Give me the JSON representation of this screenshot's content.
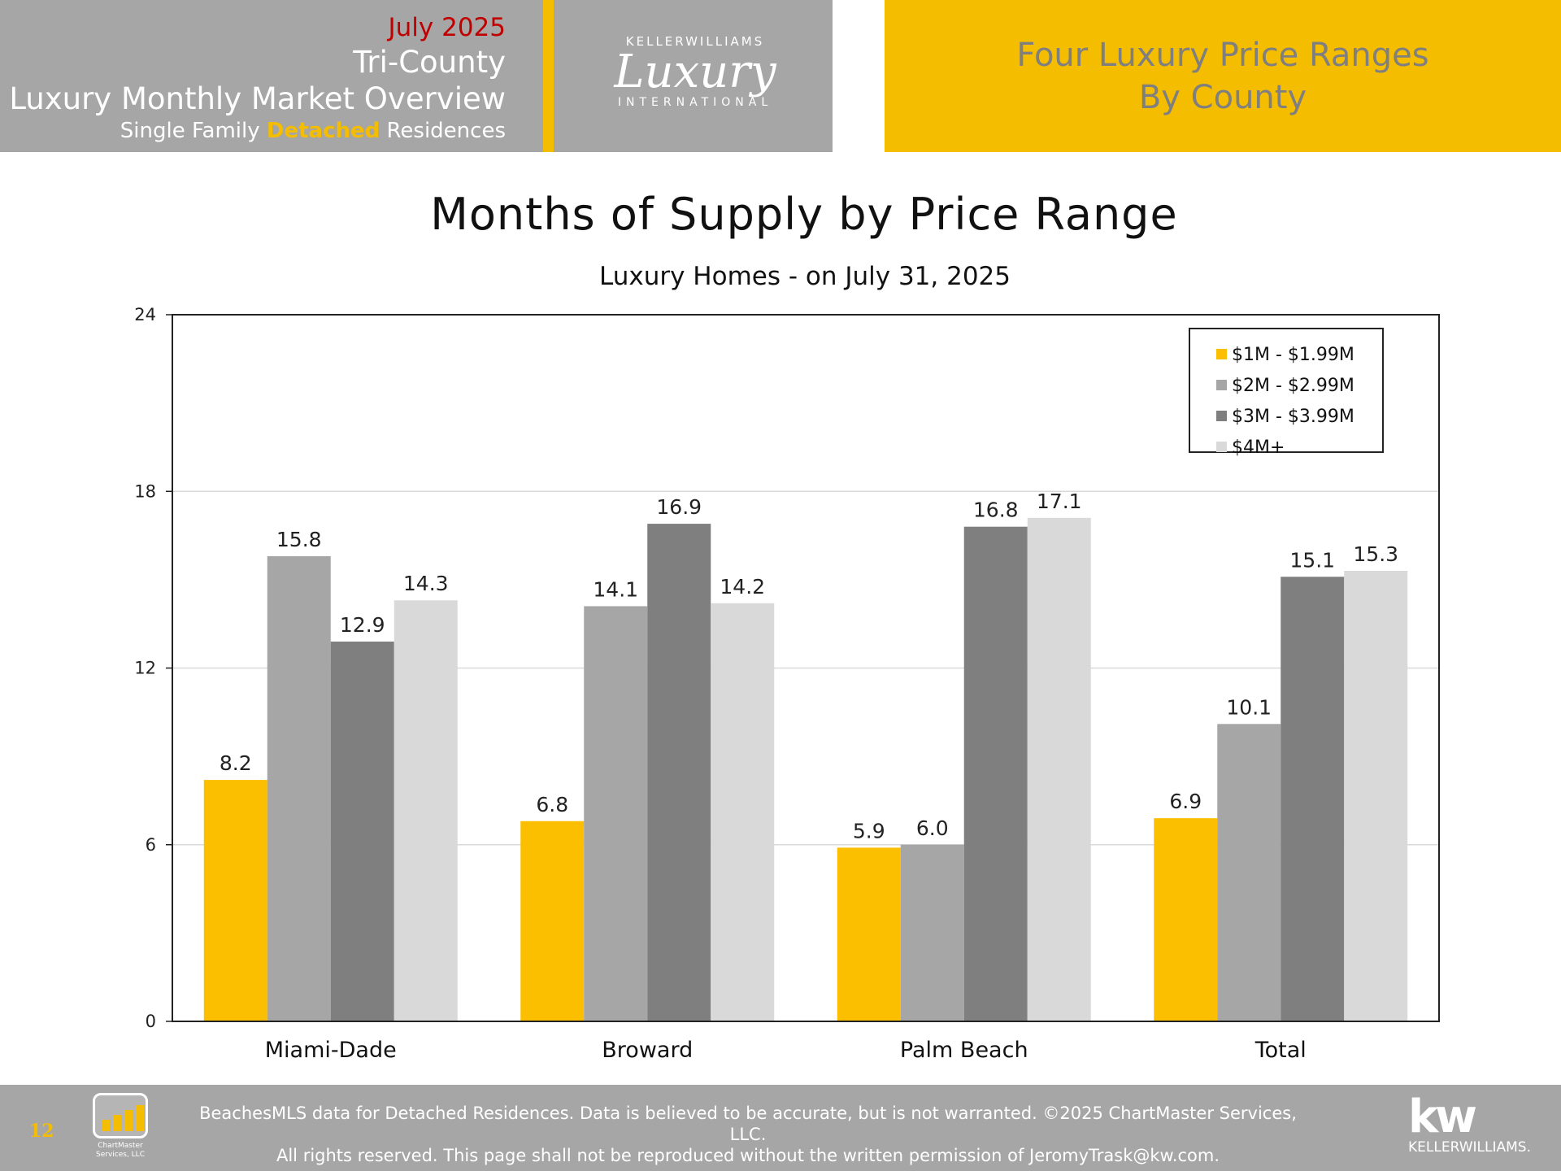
{
  "header": {
    "month": "July 2025",
    "line1": "Tri-County",
    "line2": "Luxury Monthly Market Overview",
    "sub_prefix": "Single Family ",
    "sub_accent": "Detached",
    "sub_suffix": " Residences",
    "logo_top": "KELLERWILLIAMS",
    "logo_script": "Luxury",
    "logo_bottom": "INTERNATIONAL",
    "right_line1": "Four Luxury Price Ranges",
    "right_line2": "By County"
  },
  "chart_data": {
    "type": "bar",
    "title": "Months of Supply by Price Range",
    "subtitle": "Luxury Homes - on July 31, 2025",
    "categories": [
      "Miami-Dade",
      "Broward",
      "Palm Beach",
      "Total"
    ],
    "series": [
      {
        "name": "$1M - $1.99M",
        "color": "#fbbf00",
        "values": [
          8.2,
          6.8,
          5.9,
          6.9
        ]
      },
      {
        "name": "$2M - $2.99M",
        "color": "#a6a6a6",
        "values": [
          15.8,
          14.1,
          6.0,
          10.1
        ]
      },
      {
        "name": "$3M - $3.99M",
        "color": "#7f7f7f",
        "values": [
          12.9,
          16.9,
          16.8,
          15.1
        ]
      },
      {
        "name": "$4M+",
        "color": "#d9d9d9",
        "values": [
          14.3,
          14.2,
          17.1,
          15.3
        ]
      }
    ],
    "ylim": [
      0,
      24
    ],
    "yticks": [
      0,
      6,
      12,
      18,
      24
    ],
    "grid": true,
    "legend": "top-right"
  },
  "footer": {
    "page": "12",
    "cm_logo": "ChartMaster Services, LLC",
    "line1": "BeachesMLS data for Detached Residences.  Data is believed to be accurate, but is not warranted.   ©2025  ChartMaster Services, LLC.",
    "line2": "All rights reserved. This page shall not be reproduced without the written permission of JeromyTrask@kw.com.",
    "kw_mark": "kw",
    "kw_name": "KELLERWILLIAMS."
  },
  "colors": {
    "gold": "#f5bd00",
    "gray": "#a6a6a6",
    "red": "#c00000"
  }
}
